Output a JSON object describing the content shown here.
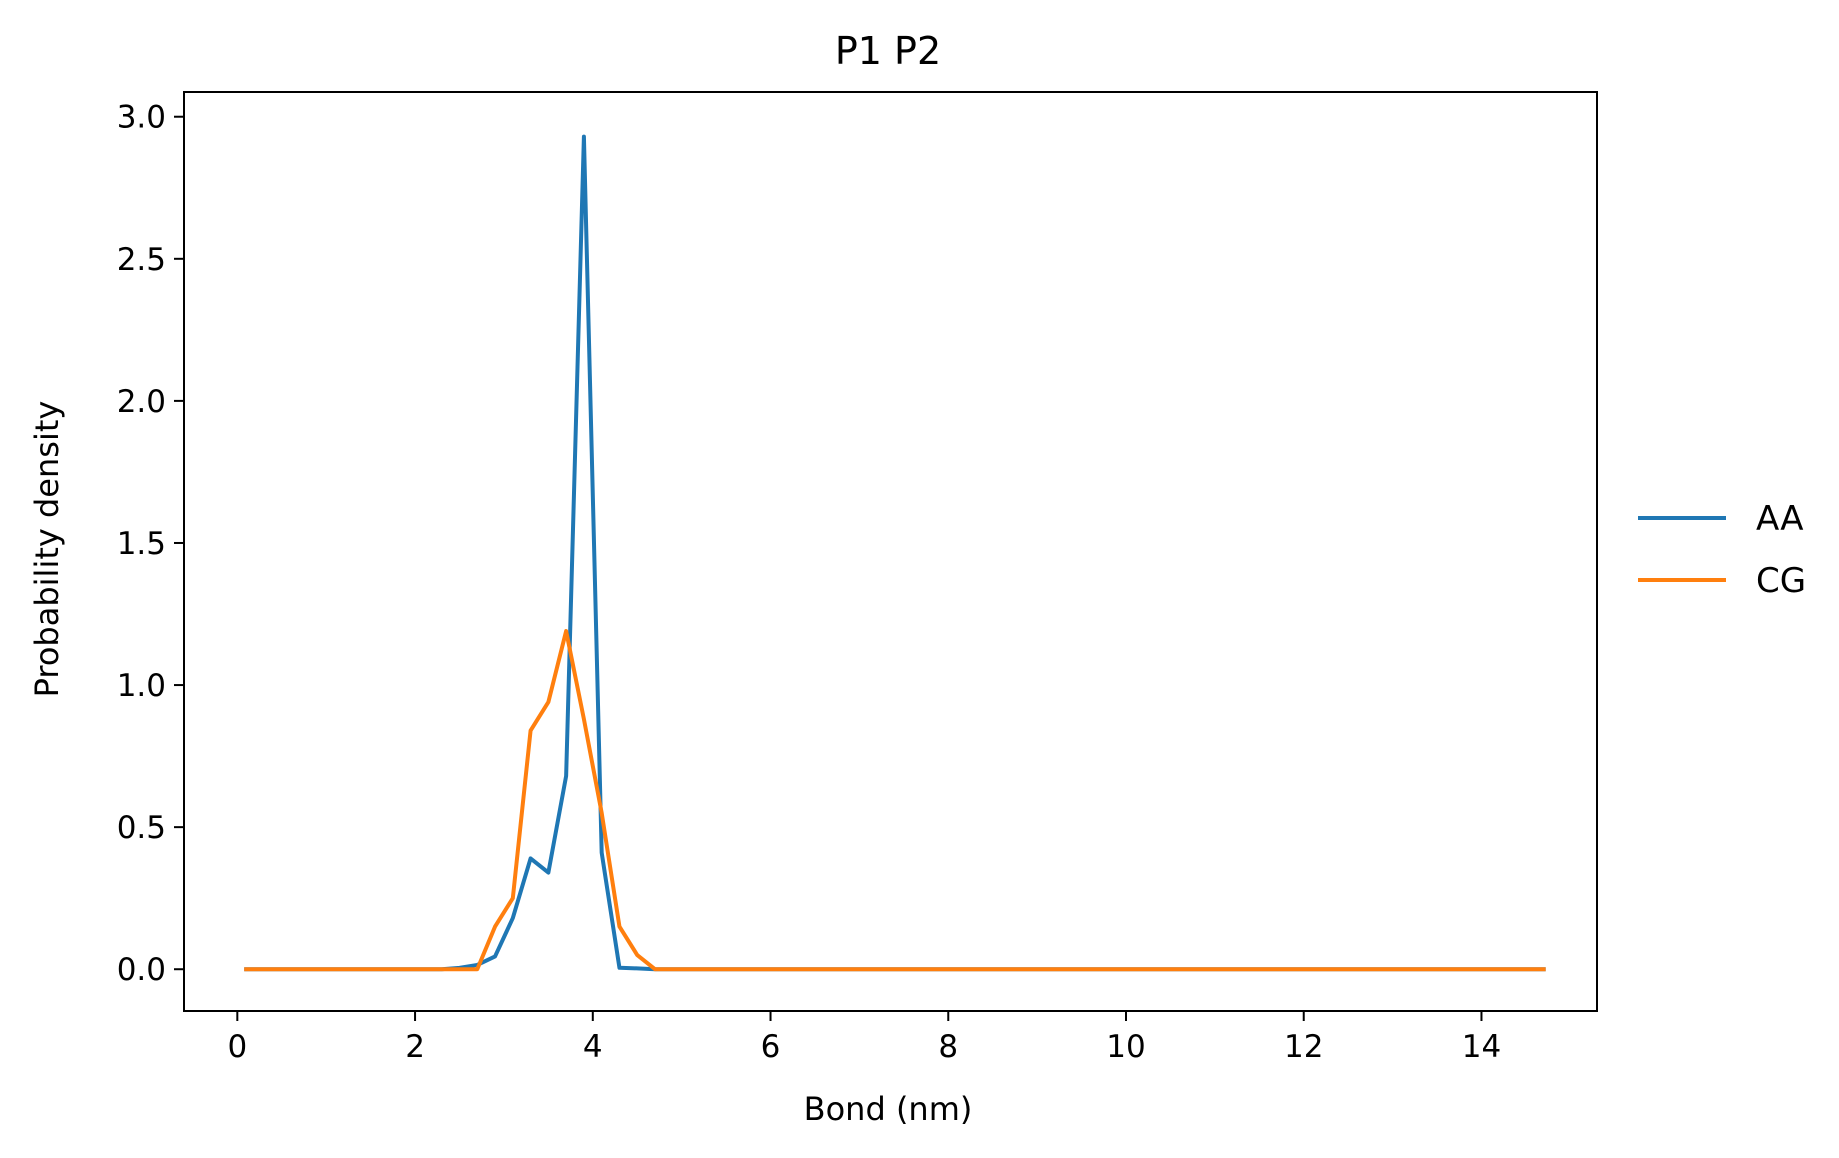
{
  "chart_data": {
    "type": "line",
    "title": "P1 P2",
    "xlabel": "Bond (nm)",
    "ylabel": "Probability density",
    "xlim": [
      -0.6,
      15.3
    ],
    "ylim": [
      -0.147,
      3.087
    ],
    "xticks": [
      0,
      2,
      4,
      6,
      8,
      10,
      12,
      14
    ],
    "yticks": [
      0.0,
      0.5,
      1.0,
      1.5,
      2.0,
      2.5,
      3.0
    ],
    "xtick_labels": [
      "0",
      "2",
      "4",
      "6",
      "8",
      "10",
      "12",
      "14"
    ],
    "ytick_labels": [
      "0.0",
      "0.5",
      "1.0",
      "1.5",
      "2.0",
      "2.5",
      "3.0"
    ],
    "grid": false,
    "legend_position": "outside-right",
    "series": [
      {
        "name": "AA",
        "color": "#1f77b4",
        "x": [
          0.1,
          2.3,
          2.5,
          2.7,
          2.9,
          3.1,
          3.3,
          3.5,
          3.7,
          3.9,
          4.1,
          4.3,
          4.5,
          4.7,
          14.7
        ],
        "y": [
          0.0,
          0.0,
          0.005,
          0.015,
          0.045,
          0.18,
          0.39,
          0.34,
          0.68,
          2.93,
          0.41,
          0.005,
          0.003,
          0.0,
          0.0
        ]
      },
      {
        "name": "CG",
        "color": "#ff7f0e",
        "x": [
          0.1,
          2.7,
          2.9,
          3.1,
          3.3,
          3.5,
          3.7,
          3.9,
          4.1,
          4.3,
          4.5,
          4.7,
          14.7
        ],
        "y": [
          0.0,
          0.0,
          0.15,
          0.25,
          0.84,
          0.94,
          1.19,
          0.88,
          0.55,
          0.15,
          0.05,
          0.0,
          0.0
        ]
      }
    ]
  }
}
